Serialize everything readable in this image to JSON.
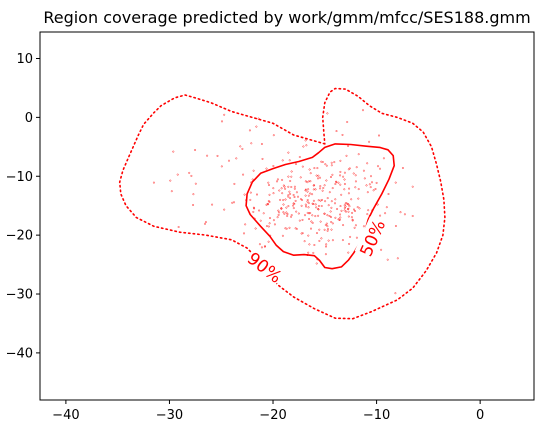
{
  "chart_data": {
    "type": "scatter",
    "title": "Region coverage predicted by work/gmm/mfcc/SES188.gmm",
    "xlabel": "",
    "ylabel": "",
    "xlim": [
      -42.5,
      5.2
    ],
    "ylim": [
      -48,
      14.5
    ],
    "x_ticks": [
      -40,
      -30,
      -20,
      -10,
      0
    ],
    "y_ticks": [
      10,
      0,
      -10,
      -20,
      -30,
      -40
    ],
    "x_tick_labels": [
      "−40",
      "−30",
      "−20",
      "−10",
      "0"
    ],
    "y_tick_labels": [
      "10",
      "0",
      "−10",
      "−20",
      "−30",
      "−40"
    ],
    "grid": false,
    "colors": {
      "points": "#ff0000",
      "contours": "#ff0000",
      "axes": "#000000"
    },
    "contours": [
      {
        "label": "90%",
        "style": "dotted",
        "label_at": [
          -20.8,
          -25.5
        ],
        "label_rotation": 38,
        "points": [
          [
            -15,
            -4.5
          ],
          [
            -18,
            -3
          ],
          [
            -20,
            -1
          ],
          [
            -22,
            0
          ],
          [
            -24,
            1
          ],
          [
            -26,
            2.5
          ],
          [
            -27.5,
            3.3
          ],
          [
            -28.5,
            3.8
          ],
          [
            -29.5,
            3.3
          ],
          [
            -30.8,
            2
          ],
          [
            -31.5,
            0.8
          ],
          [
            -32.5,
            -1.2
          ],
          [
            -33,
            -3
          ],
          [
            -33.5,
            -5
          ],
          [
            -34,
            -7
          ],
          [
            -34.5,
            -9
          ],
          [
            -34.8,
            -11
          ],
          [
            -34.7,
            -13
          ],
          [
            -34.2,
            -15
          ],
          [
            -33.2,
            -17
          ],
          [
            -31.5,
            -18.5
          ],
          [
            -29,
            -19.5
          ],
          [
            -26.5,
            -20
          ],
          [
            -24,
            -20.8
          ],
          [
            -22.5,
            -22.2
          ],
          [
            -21.8,
            -23.5
          ],
          [
            -20.7,
            -26.2
          ],
          [
            -19.5,
            -28.5
          ],
          [
            -18,
            -30.5
          ],
          [
            -16,
            -32.5
          ],
          [
            -14,
            -34.1
          ],
          [
            -12.3,
            -34.2
          ],
          [
            -10.5,
            -33
          ],
          [
            -8,
            -31
          ],
          [
            -6.5,
            -29
          ],
          [
            -5.2,
            -26
          ],
          [
            -4.2,
            -23
          ],
          [
            -3.6,
            -20
          ],
          [
            -3.4,
            -17
          ],
          [
            -3.5,
            -14
          ],
          [
            -3.8,
            -11
          ],
          [
            -4.2,
            -8
          ],
          [
            -4.7,
            -5
          ],
          [
            -5.5,
            -2.5
          ],
          [
            -6.5,
            -1
          ],
          [
            -8,
            0
          ],
          [
            -9.5,
            0.7
          ],
          [
            -10.7,
            2
          ],
          [
            -11.8,
            3.6
          ],
          [
            -13,
            4.8
          ],
          [
            -14,
            4.9
          ],
          [
            -14.5,
            4.3
          ],
          [
            -15,
            2.5
          ],
          [
            -15.2,
            0
          ],
          [
            -15.1,
            -2.5
          ],
          [
            -15,
            -4.5
          ]
        ]
      },
      {
        "label": "50%",
        "style": "solid",
        "label_at": [
          -10.4,
          -20.5
        ],
        "label_rotation": -66,
        "points": [
          [
            -17.5,
            -7.5
          ],
          [
            -16.2,
            -6.8
          ],
          [
            -15.6,
            -6
          ],
          [
            -15,
            -5.1
          ],
          [
            -14,
            -4.5
          ],
          [
            -12.5,
            -4.6
          ],
          [
            -11,
            -4.9
          ],
          [
            -9.7,
            -5.1
          ],
          [
            -8.9,
            -5.5
          ],
          [
            -8.4,
            -6.5
          ],
          [
            -8.3,
            -8.2
          ],
          [
            -8.8,
            -10.5
          ],
          [
            -9.5,
            -13
          ],
          [
            -10.3,
            -15.5
          ],
          [
            -10.8,
            -17.3
          ],
          [
            -11,
            -18.5
          ],
          [
            -11.2,
            -20
          ],
          [
            -11.7,
            -21.5
          ],
          [
            -12.2,
            -23
          ],
          [
            -12.7,
            -24.2
          ],
          [
            -13.4,
            -25.4
          ],
          [
            -14.3,
            -25.7
          ],
          [
            -15,
            -25.5
          ],
          [
            -15.5,
            -24.3
          ],
          [
            -16,
            -23.5
          ],
          [
            -17,
            -23.3
          ],
          [
            -18,
            -23.4
          ],
          [
            -19,
            -22.8
          ],
          [
            -19.7,
            -21.7
          ],
          [
            -20.3,
            -20.2
          ],
          [
            -21.2,
            -18.5
          ],
          [
            -22.2,
            -16.5
          ],
          [
            -22.6,
            -15
          ],
          [
            -22.5,
            -13
          ],
          [
            -22,
            -11
          ],
          [
            -21.2,
            -9.5
          ],
          [
            -20,
            -8.7
          ],
          [
            -18.8,
            -8
          ],
          [
            -17.5,
            -7.5
          ]
        ]
      }
    ],
    "scatter_seed": 188
  }
}
